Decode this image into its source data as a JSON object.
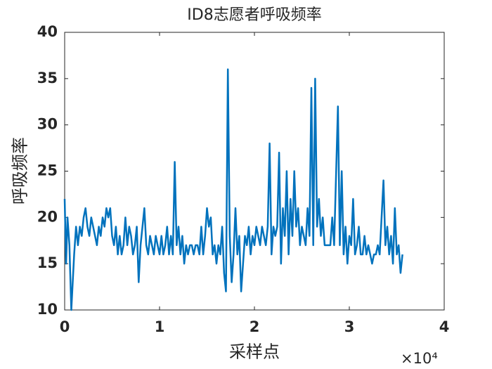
{
  "chart_data": {
    "type": "line",
    "title": "ID8志愿者呼吸频率",
    "xlabel": "采样点",
    "ylabel": "呼吸频率",
    "x_exponent_label": "×10⁴",
    "color": "#0072bd",
    "x": [
      0,
      150,
      300,
      500,
      700,
      800,
      1000,
      1200,
      1400,
      1600,
      1800,
      2000,
      2200,
      2400,
      2600,
      2800,
      3000,
      3200,
      3400,
      3600,
      3800,
      4000,
      4200,
      4400,
      4600,
      4800,
      5000,
      5200,
      5400,
      5600,
      5800,
      6000,
      6200,
      6400,
      6600,
      6800,
      7000,
      7200,
      7400,
      7600,
      7800,
      8000,
      8200,
      8400,
      8600,
      8800,
      9000,
      9200,
      9400,
      9600,
      9800,
      10000,
      10200,
      10400,
      10600,
      10800,
      11000,
      11200,
      11400,
      11600,
      11800,
      12000,
      12200,
      12400,
      12600,
      12800,
      13000,
      13200,
      13400,
      13600,
      13800,
      14000,
      14200,
      14400,
      14600,
      14800,
      15000,
      15200,
      15400,
      15600,
      15800,
      16000,
      16200,
      16400,
      16600,
      16800,
      17000,
      17200,
      17400,
      17600,
      17800,
      18000,
      18200,
      18400,
      18600,
      18800,
      19000,
      19200,
      19400,
      19600,
      19800,
      20000,
      20200,
      20400,
      20600,
      20800,
      21000,
      21200,
      21400,
      21600,
      21800,
      22000,
      22200,
      22400,
      22600,
      22800,
      23000,
      23200,
      23400,
      23600,
      23800,
      24000,
      24200,
      24400,
      24600,
      24800,
      25000,
      25200,
      25400,
      25600,
      25800,
      26000,
      26200,
      26400,
      26600,
      26800,
      27000,
      27200,
      27400,
      27600,
      27800,
      28000,
      28200,
      28400,
      28800,
      29000,
      29200,
      29400,
      29600,
      29800,
      30000,
      30200,
      30400,
      30600,
      30800,
      31000,
      31200,
      31400,
      31600,
      31800,
      32000,
      32200,
      32400,
      32600,
      32800,
      33000,
      33200,
      33400,
      33600,
      33800,
      34000,
      34200,
      34400,
      34600,
      34800,
      35000,
      35200,
      35400,
      35600
    ],
    "values": [
      22,
      15,
      20,
      17,
      10,
      12,
      16,
      19,
      17,
      19,
      18,
      20,
      21,
      19,
      18,
      20,
      19,
      18,
      17,
      19,
      18,
      20,
      19,
      21,
      20,
      21,
      18,
      17,
      19,
      16,
      18,
      16,
      17,
      20,
      17,
      19,
      18,
      16,
      17,
      19,
      13,
      17,
      19,
      21,
      17,
      16,
      18,
      17,
      16,
      18,
      17,
      16,
      18,
      16,
      17,
      19,
      16,
      18,
      16,
      26,
      17,
      19,
      16,
      18,
      15,
      17,
      16,
      17,
      17,
      16,
      17,
      17,
      16,
      19,
      16,
      18,
      21,
      19,
      20,
      16,
      17,
      15,
      17,
      16,
      19,
      14,
      12,
      36,
      18,
      13,
      16,
      21,
      16,
      18,
      12,
      15,
      18,
      17,
      19,
      16,
      18,
      17,
      19,
      18,
      17,
      19,
      18,
      17,
      19,
      28,
      16,
      19,
      18,
      19,
      27,
      15,
      21,
      18,
      25,
      16,
      22,
      18,
      25,
      19,
      21,
      17,
      19,
      18,
      17,
      21,
      18,
      34,
      17,
      35,
      19,
      22,
      18,
      20,
      17,
      17,
      17,
      17,
      20,
      17,
      32,
      17,
      25,
      16,
      19,
      15,
      18,
      17,
      22,
      16,
      17,
      19,
      16,
      16,
      18,
      16,
      17,
      16,
      15,
      16,
      16,
      17,
      16,
      20,
      24,
      17,
      19,
      16,
      18,
      15,
      21,
      16,
      17,
      14,
      16
    ],
    "xlim": [
      0,
      40000
    ],
    "xticks": [
      {
        "value": 0,
        "label": "0"
      },
      {
        "value": 10000,
        "label": "1"
      },
      {
        "value": 20000,
        "label": "2"
      },
      {
        "value": 30000,
        "label": "3"
      },
      {
        "value": 40000,
        "label": "4"
      }
    ],
    "ylim": [
      10,
      40
    ],
    "yticks": [
      10,
      15,
      20,
      25,
      30,
      35,
      40
    ]
  }
}
